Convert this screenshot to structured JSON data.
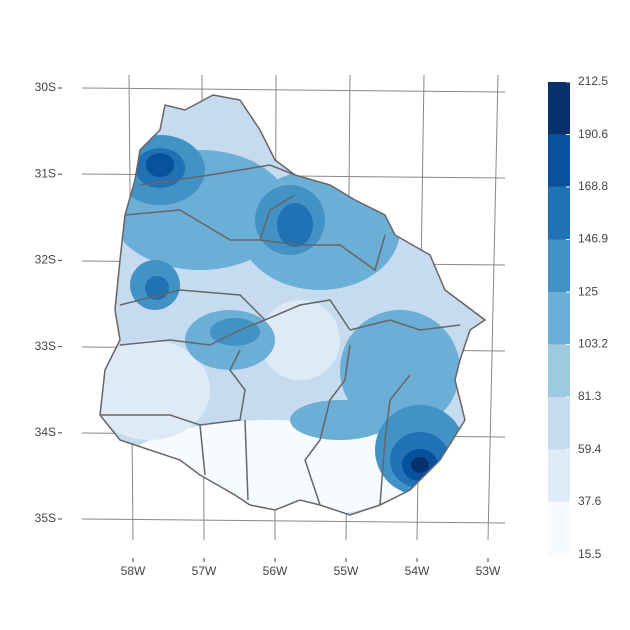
{
  "map": {
    "lat_labels": [
      "30S",
      "31S",
      "32S",
      "33S",
      "34S",
      "35S"
    ],
    "lon_labels": [
      "58W",
      "57W",
      "56W",
      "55W",
      "54W",
      "53W"
    ],
    "legend": {
      "breaks": [
        15.5,
        37.6,
        59.4,
        81.3,
        103.2,
        125.0,
        146.9,
        168.8,
        190.6,
        212.5
      ],
      "colors": [
        "#f7fbff",
        "#deebf7",
        "#c6dbef",
        "#9ecae1",
        "#6baed6",
        "#4292c6",
        "#2171b5",
        "#08519c",
        "#08306b"
      ]
    }
  }
}
